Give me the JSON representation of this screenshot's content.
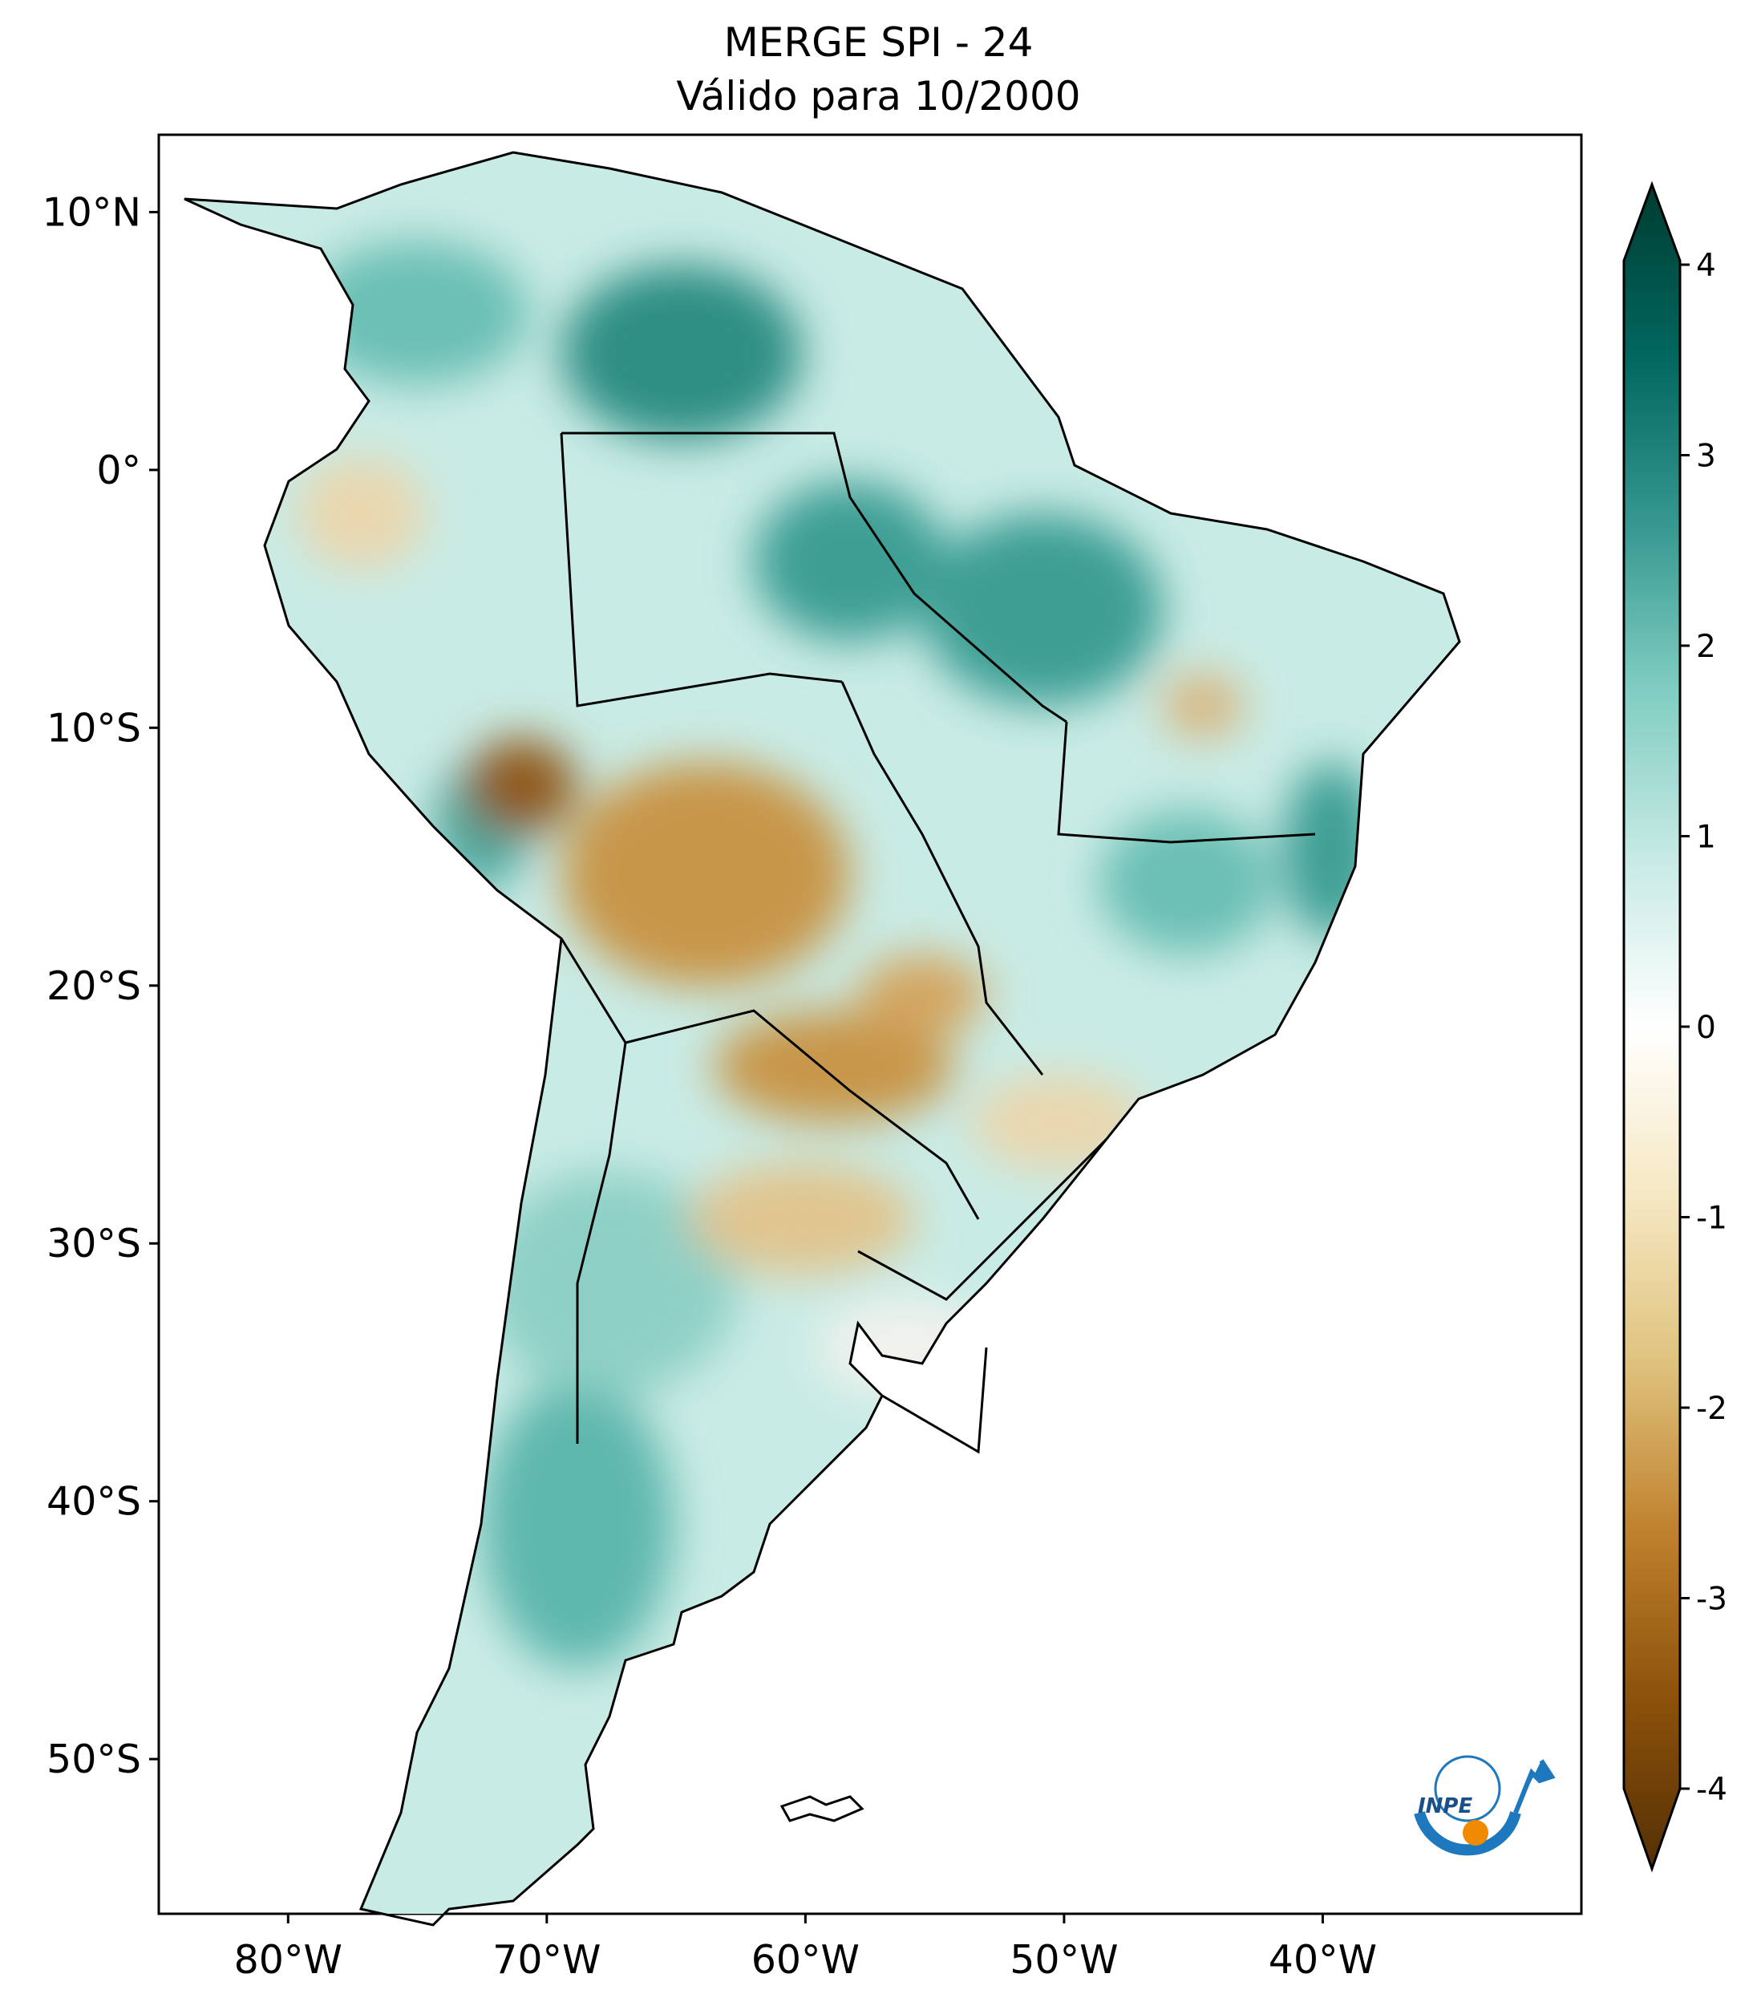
{
  "title": {
    "line1": "MERGE   SPI - 24",
    "line2": "Válido para 10/2000"
  },
  "axes": {
    "lat_labels": [
      "10°N",
      "0°",
      "10°S",
      "20°S",
      "30°S",
      "40°S",
      "50°S"
    ],
    "lat_values": [
      10,
      0,
      -10,
      -20,
      -30,
      -40,
      -50
    ],
    "lon_labels": [
      "80°W",
      "70°W",
      "60°W",
      "50°W",
      "40°W"
    ],
    "lon_values": [
      -80,
      -70,
      -60,
      -50,
      -40
    ],
    "lon_range": [
      -85,
      -30
    ],
    "lat_range": [
      -56,
      13
    ]
  },
  "colorbar": {
    "ticks": [
      "4",
      "3",
      "2",
      "1",
      "0",
      "-1",
      "-2",
      "-3",
      "-4"
    ],
    "tick_values": [
      4,
      3,
      2,
      1,
      0,
      -1,
      -2,
      -3,
      -4
    ],
    "range": [
      -4,
      4
    ],
    "colors": [
      "#543005",
      "#8c510a",
      "#bf812d",
      "#dfc27d",
      "#f6e8c3",
      "#ffffff",
      "#c7eae5",
      "#80cdc1",
      "#35978f",
      "#01665e",
      "#003c30"
    ]
  },
  "logo": {
    "text": "INPE",
    "colors": {
      "ring": "#1e78be",
      "dot": "#f08a00"
    }
  },
  "map": {
    "wet_color": "#5fb8ad",
    "dry_color": "#c8964a",
    "border_color": "#000000"
  }
}
